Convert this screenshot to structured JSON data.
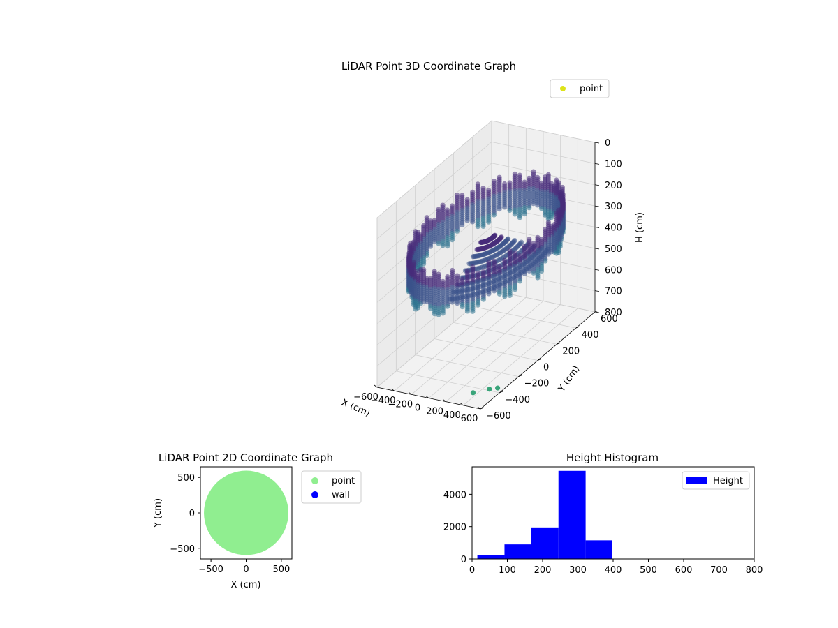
{
  "chart_data": [
    {
      "type": "scatter3d",
      "title": "LiDAR Point 3D Coordinate Graph",
      "xlabel": "X (cm)",
      "ylabel": "Y (cm)",
      "zlabel": "H (cm)",
      "x_ticks": [
        "−600",
        "−400",
        "−200",
        "0",
        "200",
        "400",
        "600"
      ],
      "y_ticks": [
        "−600",
        "−400",
        "−200",
        "0",
        "200",
        "400",
        "600"
      ],
      "z_ticks": [
        "0",
        "100",
        "200",
        "300",
        "400",
        "500",
        "600",
        "700",
        "800"
      ],
      "xlim": [
        -600,
        600
      ],
      "ylim": [
        -600,
        600
      ],
      "zlim": [
        0,
        800
      ],
      "z_inverted": true,
      "legend": [
        {
          "label": "point",
          "color": "#dde318"
        }
      ],
      "legend_position": "top-right",
      "colormap": "viridis",
      "grid": true,
      "description_shape": "points on a cylinder of radius about 600 cm, heights mostly 200-400 cm",
      "radius": 600,
      "colors": {
        "top": "#472c7a",
        "mid": "#3b528b",
        "low": "#2c718e",
        "far": "#3aa47a"
      }
    },
    {
      "type": "scatter",
      "title": "LiDAR Point 2D Coordinate Graph",
      "xlabel": "X (cm)",
      "ylabel": "Y (cm)",
      "x_ticks": [
        "−500",
        "0",
        "500"
      ],
      "y_ticks": [
        "500",
        "0",
        "−500"
      ],
      "xlim": [
        -650,
        650
      ],
      "ylim": [
        -650,
        650
      ],
      "legend": [
        {
          "label": "point",
          "color": "#90ee90"
        },
        {
          "label": "wall",
          "color": "#0000ff"
        }
      ],
      "legend_position": "outside-right",
      "disk_radius": 600
    },
    {
      "type": "bar",
      "title": "Height Histogram",
      "x_ticks": [
        "0",
        "100",
        "200",
        "300",
        "400",
        "500",
        "600",
        "700",
        "800"
      ],
      "y_ticks": [
        "0",
        "2000",
        "4000"
      ],
      "xlim": [
        0,
        800
      ],
      "ylim": [
        0,
        5700
      ],
      "legend": [
        {
          "label": "Height",
          "color": "#0000ff"
        }
      ],
      "legend_position": "top-right",
      "bins": [
        {
          "x0": 15,
          "x1": 92,
          "count": 230
        },
        {
          "x0": 92,
          "x1": 168,
          "count": 900
        },
        {
          "x0": 168,
          "x1": 245,
          "count": 1950
        },
        {
          "x0": 245,
          "x1": 322,
          "count": 5450
        },
        {
          "x0": 322,
          "x1": 398,
          "count": 1150
        },
        {
          "x0": 398,
          "x1": 475,
          "count": 0
        },
        {
          "x0": 475,
          "x1": 552,
          "count": 0
        },
        {
          "x0": 552,
          "x1": 628,
          "count": 0
        },
        {
          "x0": 628,
          "x1": 705,
          "count": 0
        },
        {
          "x0": 705,
          "x1": 782,
          "count": 0
        }
      ]
    }
  ]
}
